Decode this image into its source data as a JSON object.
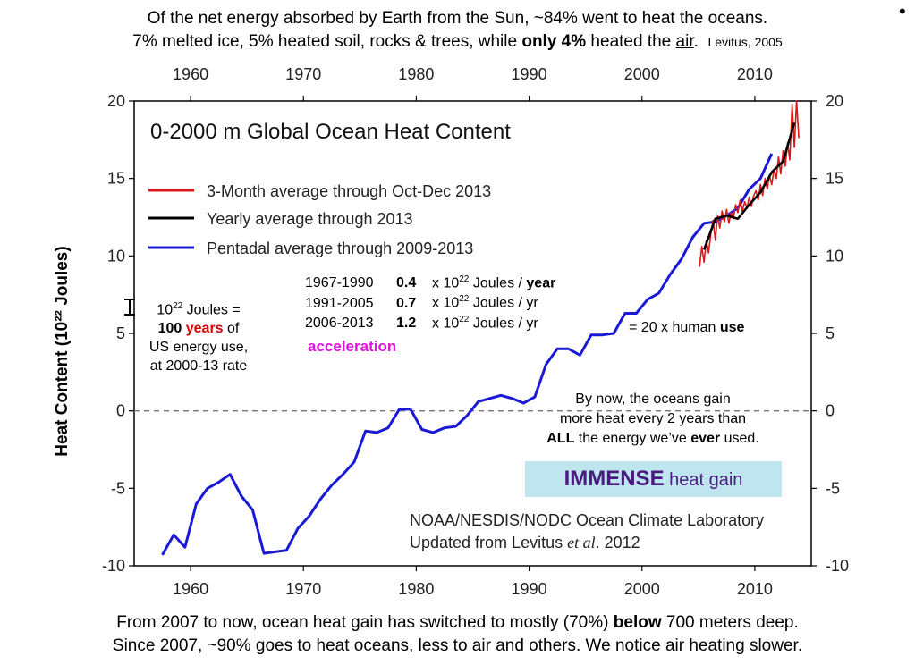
{
  "header": {
    "line1": "Of the net energy absorbed by Earth from the Sun, ~84% went to heat the oceans.",
    "line2_a": "7% melted ice, 5% heated soil, rocks & trees, while ",
    "line2_b": "only 4%",
    "line2_c": " heated the ",
    "line2_d": "air",
    "line2_e": ".",
    "source": "Levitus, 2005",
    "bullet": "•"
  },
  "chart_data": {
    "type": "line",
    "title": "0-2000 m Global Ocean Heat Content",
    "ylabel": "Heat Content (10²² Joules)",
    "xlim": [
      1955,
      2015
    ],
    "ylim": [
      -10,
      20
    ],
    "x_ticks": [
      "1960",
      "1970",
      "1980",
      "1990",
      "2000",
      "2010"
    ],
    "y_ticks": [
      "20",
      "15",
      "10",
      "5",
      "0",
      "-5",
      "-10"
    ],
    "y_tick_values": [
      20,
      15,
      10,
      5,
      0,
      -5,
      -10
    ],
    "x_tick_values": [
      1960,
      1970,
      1980,
      1990,
      2000,
      2010
    ],
    "zero_line": "dashed",
    "legend_position": "top-left",
    "series": [
      {
        "name": "3-Month average through Oct-Dec 2013",
        "color": "#d81818",
        "x": [
          2005.1,
          2005.3,
          2005.5,
          2005.7,
          2005.9,
          2006.1,
          2006.3,
          2006.5,
          2006.7,
          2006.9,
          2007.1,
          2007.3,
          2007.5,
          2007.7,
          2007.9,
          2008.1,
          2008.3,
          2008.5,
          2008.7,
          2008.9,
          2009.1,
          2009.3,
          2009.5,
          2009.7,
          2009.9,
          2010.1,
          2010.3,
          2010.5,
          2010.7,
          2010.9,
          2011.1,
          2011.3,
          2011.5,
          2011.7,
          2011.9,
          2012.1,
          2012.3,
          2012.5,
          2012.7,
          2012.9,
          2013.1,
          2013.3,
          2013.5,
          2013.7,
          2013.9
        ],
        "y": [
          9.3,
          10.6,
          9.6,
          11.0,
          10.2,
          11.4,
          12.3,
          11.0,
          12.6,
          11.8,
          12.9,
          12.2,
          13.0,
          12.1,
          12.8,
          12.4,
          13.3,
          12.8,
          13.6,
          12.9,
          13.5,
          13.1,
          13.8,
          13.2,
          13.9,
          14.2,
          13.6,
          14.6,
          13.9,
          15.0,
          14.3,
          15.2,
          14.6,
          15.6,
          15.0,
          16.4,
          15.3,
          16.8,
          15.8,
          17.3,
          16.2,
          19.8,
          17.0,
          20.0,
          17.6
        ]
      },
      {
        "name": "Yearly average through 2013",
        "color": "#000000",
        "x": [
          2005.5,
          2006.5,
          2007.5,
          2008.5,
          2009.5,
          2010.5,
          2011.5,
          2012.5,
          2013.5
        ],
        "y": [
          10.4,
          12.4,
          12.6,
          12.4,
          13.3,
          14.1,
          15.4,
          16.1,
          18.6
        ]
      },
      {
        "name": "Pentadal average through 2009-2013",
        "color": "#1a1ad6",
        "x": [
          1957.5,
          1958.5,
          1959.5,
          1960.5,
          1961.5,
          1962.5,
          1963.5,
          1964.5,
          1965.5,
          1966.5,
          1967.5,
          1968.5,
          1969.5,
          1970.5,
          1971.5,
          1972.5,
          1973.5,
          1974.5,
          1975.5,
          1976.5,
          1977.5,
          1978.5,
          1979.5,
          1980.5,
          1981.5,
          1982.5,
          1983.5,
          1984.5,
          1985.5,
          1986.5,
          1987.5,
          1988.5,
          1989.5,
          1990.5,
          1991.5,
          1992.5,
          1993.5,
          1994.5,
          1995.5,
          1996.5,
          1997.5,
          1998.5,
          1999.5,
          2000.5,
          2001.5,
          2002.5,
          2003.5,
          2004.5,
          2005.5,
          2006.5,
          2007.5,
          2008.5,
          2009.5,
          2010.5,
          2011.5
        ],
        "y": [
          -9.3,
          -8.0,
          -8.8,
          -6.0,
          -5.0,
          -4.6,
          -4.1,
          -5.5,
          -6.4,
          -9.2,
          -9.1,
          -9.0,
          -7.6,
          -6.8,
          -5.7,
          -4.8,
          -4.1,
          -3.3,
          -1.3,
          -1.4,
          -1.1,
          0.1,
          0.1,
          -1.2,
          -1.4,
          -1.1,
          -1.0,
          -0.3,
          0.6,
          0.8,
          1.0,
          0.8,
          0.5,
          0.9,
          3.0,
          4.0,
          4.0,
          3.6,
          4.9,
          4.9,
          5.0,
          6.3,
          6.3,
          7.2,
          7.6,
          8.8,
          9.8,
          11.2,
          12.1,
          12.2,
          12.6,
          13.1,
          14.3,
          15.0,
          16.6
        ]
      }
    ]
  },
  "annotations": {
    "rates": [
      {
        "period": "1967-1990",
        "value": "0.4",
        "unit_a": "x 10",
        "sup": "22",
        "unit_b": " Joules / ",
        "unit_c": "year"
      },
      {
        "period": "1991-2005",
        "value": "0.7",
        "unit_a": "x 10",
        "sup": "22",
        "unit_b": " Joules / yr",
        "unit_c": ""
      },
      {
        "period": "2006-2013",
        "value": "1.2",
        "unit_a": "x 10",
        "sup": "22",
        "unit_b": " Joules / yr",
        "unit_c": ""
      }
    ],
    "acceleration": "acceleration",
    "human_use_a": "= 20 x human ",
    "human_use_b": "use",
    "scale_note": {
      "l1_a": "10",
      "l1_sup": "22",
      "l1_b": " Joules =",
      "l2_a": "100 ",
      "l2_b": "years",
      "l2_c": " of",
      "l3": "US energy use,",
      "l4": "at 2000-13 rate"
    },
    "by_now": {
      "l1": "By now, the oceans gain",
      "l2": "more heat every 2 years than",
      "l3_a": "ALL",
      "l3_b": " the energy we’ve ",
      "l3_c": "ever",
      "l3_d": " used."
    },
    "immense_a": "IMMENSE",
    "immense_b": " heat gain",
    "noaa_1": "NOAA/NESDIS/NODC Ocean Climate Laboratory",
    "noaa_2a": "Updated from Levitus ",
    "noaa_2b": "et al",
    "noaa_2c": ". 2012"
  },
  "footer": {
    "line1_a": "From 2007 to now, ocean heat gain has switched to mostly (70%) ",
    "line1_b": "below",
    "line1_c": " 700 meters deep.",
    "line2": "Since 2007, ~90% goes to heat oceans, less to air and others.  We notice air heating slower."
  }
}
